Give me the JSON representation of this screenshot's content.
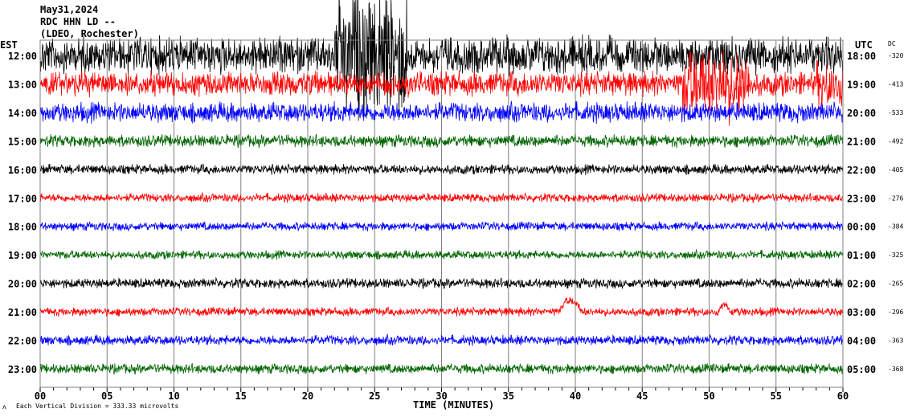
{
  "header": {
    "date": "May31,2024",
    "station": "RDC HHN LD --",
    "network": "(LDEO, Rochester)"
  },
  "chart_data": {
    "type": "line",
    "title": "May31,2024 RDC HHN LD --",
    "left_axis_title": "EST",
    "right_axis_title": "UTC",
    "dc_title": "DC",
    "xlabel": "TIME (MINUTES)",
    "xlim": [
      0,
      60
    ],
    "x_ticks": [
      "00",
      "05",
      "10",
      "15",
      "20",
      "25",
      "30",
      "35",
      "40",
      "45",
      "50",
      "55",
      "60"
    ],
    "grid": "vertical every 5 minutes",
    "footer": "Each Vertical Division =  333.33 microvolts",
    "footer_mark": "ʌ",
    "rows": [
      {
        "est": "12:00",
        "utc": "18:00",
        "dc": "-320",
        "color": "#000000",
        "amplitude": 3.0
      },
      {
        "est": "13:00",
        "utc": "19:00",
        "dc": "-413",
        "color": "#ff0000",
        "amplitude": 2.0
      },
      {
        "est": "14:00",
        "utc": "20:00",
        "dc": "-533",
        "color": "#0000ff",
        "amplitude": 1.6
      },
      {
        "est": "15:00",
        "utc": "21:00",
        "dc": "-492",
        "color": "#006400",
        "amplitude": 1.0
      },
      {
        "est": "16:00",
        "utc": "22:00",
        "dc": "-405",
        "color": "#000000",
        "amplitude": 0.8
      },
      {
        "est": "17:00",
        "utc": "23:00",
        "dc": "-276",
        "color": "#ff0000",
        "amplitude": 0.7
      },
      {
        "est": "18:00",
        "utc": "00:00",
        "dc": "-384",
        "color": "#0000ff",
        "amplitude": 0.7
      },
      {
        "est": "19:00",
        "utc": "01:00",
        "dc": "-325",
        "color": "#006400",
        "amplitude": 0.7
      },
      {
        "est": "20:00",
        "utc": "02:00",
        "dc": "-265",
        "color": "#000000",
        "amplitude": 0.8
      },
      {
        "est": "21:00",
        "utc": "03:00",
        "dc": "-296",
        "color": "#ff0000",
        "amplitude": 0.7
      },
      {
        "est": "22:00",
        "utc": "04:00",
        "dc": "-363",
        "color": "#0000ff",
        "amplitude": 0.8
      },
      {
        "est": "23:00",
        "utc": "05:00",
        "dc": "-368",
        "color": "#006400",
        "amplitude": 0.8
      }
    ]
  }
}
